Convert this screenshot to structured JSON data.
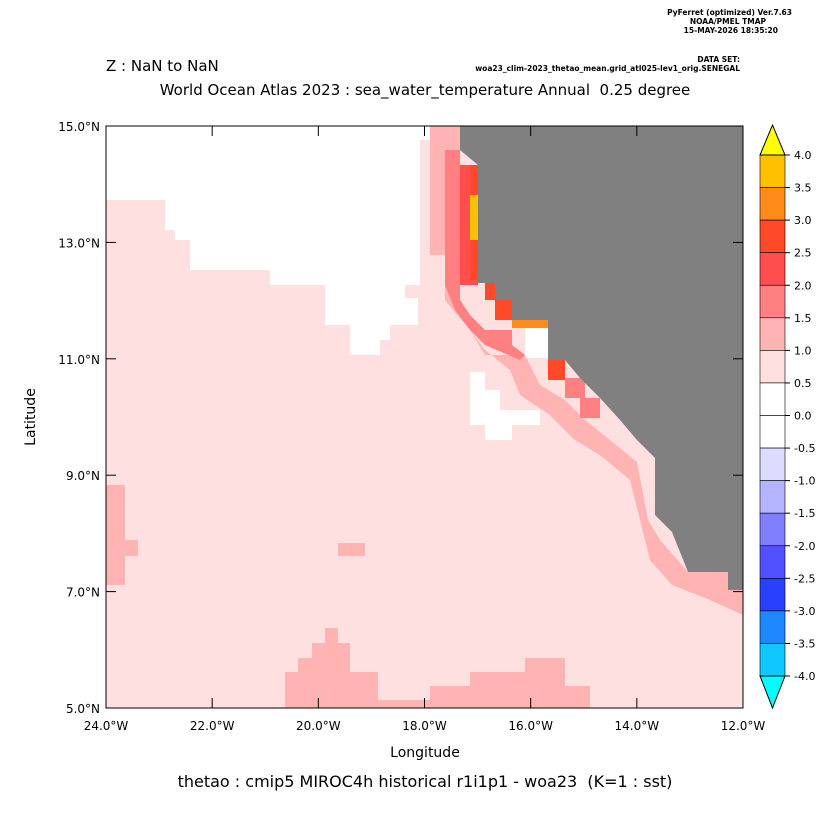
{
  "header": {
    "program": "PyFerret (optimized) Ver.7.63",
    "org": "NOAA/PMEL TMAP",
    "date": "15-MAY-2026 18:35:20",
    "dataset_label": "DATA SET:",
    "dataset": "woa23_clim-2023_thetao_mean.grid_atl025-lev1_orig.SENEGAL"
  },
  "chart_data": {
    "type": "map",
    "subtitle": "Z : NaN to NaN",
    "title": "World Ocean Atlas 2023 : sea_water_temperature Annual  0.25 degree",
    "xlabel": "Longitude",
    "ylabel": "Latitude",
    "footer": "thetao : cmip5 MIROC4h historical r1i1p1 - woa23  (K=1 : sst)",
    "xlim": [
      -24,
      -12
    ],
    "ylim": [
      5,
      15
    ],
    "xticks": [
      {
        "value": -24,
        "label": "24.0°W"
      },
      {
        "value": -22,
        "label": "22.0°W"
      },
      {
        "value": -20,
        "label": "20.0°W"
      },
      {
        "value": -18,
        "label": "18.0°W"
      },
      {
        "value": -16,
        "label": "16.0°W"
      },
      {
        "value": -14,
        "label": "14.0°W"
      },
      {
        "value": -12,
        "label": "12.0°W"
      }
    ],
    "yticks": [
      {
        "value": 5,
        "label": "5.0°N"
      },
      {
        "value": 7,
        "label": "7.0°N"
      },
      {
        "value": 9,
        "label": "9.0°N"
      },
      {
        "value": 11,
        "label": "11.0°N"
      },
      {
        "value": 13,
        "label": "13.0°N"
      },
      {
        "value": 15,
        "label": "15.0°N"
      }
    ],
    "land_color": "#808080",
    "colorbar": {
      "levels": [
        {
          "value": 4,
          "label": "4.0"
        },
        {
          "value": 3.5,
          "label": "3.5"
        },
        {
          "value": 3,
          "label": "3.0"
        },
        {
          "value": 2.5,
          "label": "2.5"
        },
        {
          "value": 2,
          "label": "2.0"
        },
        {
          "value": 1.5,
          "label": "1.5"
        },
        {
          "value": 1,
          "label": "1.0"
        },
        {
          "value": 0.5,
          "label": "0.5"
        },
        {
          "value": 0,
          "label": "0.0"
        },
        {
          "value": -0.5,
          "label": "-0.5"
        },
        {
          "value": -1,
          "label": "-1.0"
        },
        {
          "value": -1.5,
          "label": "-1.5"
        },
        {
          "value": -2,
          "label": "-2.0"
        },
        {
          "value": -2.5,
          "label": "-2.5"
        },
        {
          "value": -3,
          "label": "-3.0"
        },
        {
          "value": -3.5,
          "label": "-3.5"
        },
        {
          "value": -4,
          "label": "-4.0"
        }
      ],
      "colors": [
        "#ffc000",
        "#ff8c1a",
        "#ff4a2a",
        "#ff4e4e",
        "#ff8080",
        "#ffb3b3",
        "#ffe0e0",
        "#ffffff",
        "#ffffff",
        "#dcdcff",
        "#b4b4ff",
        "#8080ff",
        "#5050ff",
        "#2a40ff",
        "#1e88ff",
        "#10c8ff"
      ],
      "over_color": "#ffff00",
      "under_color": "#00ffff"
    }
  }
}
